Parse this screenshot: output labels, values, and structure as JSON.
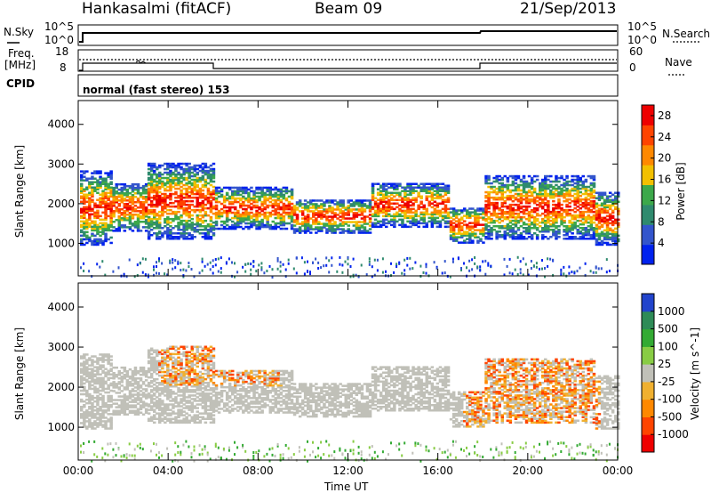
{
  "header": {
    "station": "Hankasalmi (fitACF)",
    "beam": "Beam 09",
    "date": "21/Sep/2013"
  },
  "noise_panel": {
    "left_label": "N.Sky",
    "left_ticks": [
      "10^5",
      "10^0"
    ],
    "right_label": "N.Search",
    "right_ticks": [
      "10^5",
      "10^0"
    ]
  },
  "freq_panel": {
    "left_label_line1": "Freq.",
    "left_label_line2": "[MHz]",
    "left_ticks": [
      "18",
      "8"
    ],
    "right_label": "Nave",
    "right_ticks": [
      "60",
      "0"
    ]
  },
  "cpid_panel": {
    "label": "CPID",
    "program": "normal (fast stereo) 153"
  },
  "x_axis": {
    "label": "Time UT",
    "ticks": [
      "00:00",
      "04:00",
      "08:00",
      "12:00",
      "16:00",
      "20:00",
      "00:00"
    ]
  },
  "chart_data": [
    {
      "type": "heatmap",
      "title": "",
      "ylabel": "Slant Range [km]",
      "xlabel": "Time UT",
      "yticks": [
        1000,
        2000,
        3000,
        4000
      ],
      "ylim": [
        180,
        4600
      ],
      "xlim_hours": [
        0,
        24
      ],
      "colorbar": {
        "label": "Power [dB]",
        "ticks": [
          "4",
          "8",
          "12",
          "16",
          "20",
          "24",
          "28"
        ],
        "range": [
          0,
          30
        ],
        "colors": [
          "#0022ee",
          "#3355cc",
          "#2f8a6e",
          "#3ca84a",
          "#f2c000",
          "#ff8800",
          "#ff4400",
          "#ee0000"
        ]
      }
    },
    {
      "type": "heatmap",
      "title": "",
      "ylabel": "Slant Range [km]",
      "xlabel": "Time UT",
      "yticks": [
        1000,
        2000,
        3000,
        4000
      ],
      "ylim": [
        180,
        4600
      ],
      "xlim_hours": [
        0,
        24
      ],
      "colorbar": {
        "label": "Velocity [m s^-1]",
        "ticks": [
          "1000",
          "500",
          "100",
          "25",
          "-25",
          "-100",
          "-500",
          "-1000"
        ],
        "colors": [
          "#2244cc",
          "#2e8b57",
          "#33aa33",
          "#88cc44",
          "#c0c0b8",
          "#f0b030",
          "#ff8800",
          "#ff4400",
          "#ee0000"
        ]
      }
    }
  ]
}
